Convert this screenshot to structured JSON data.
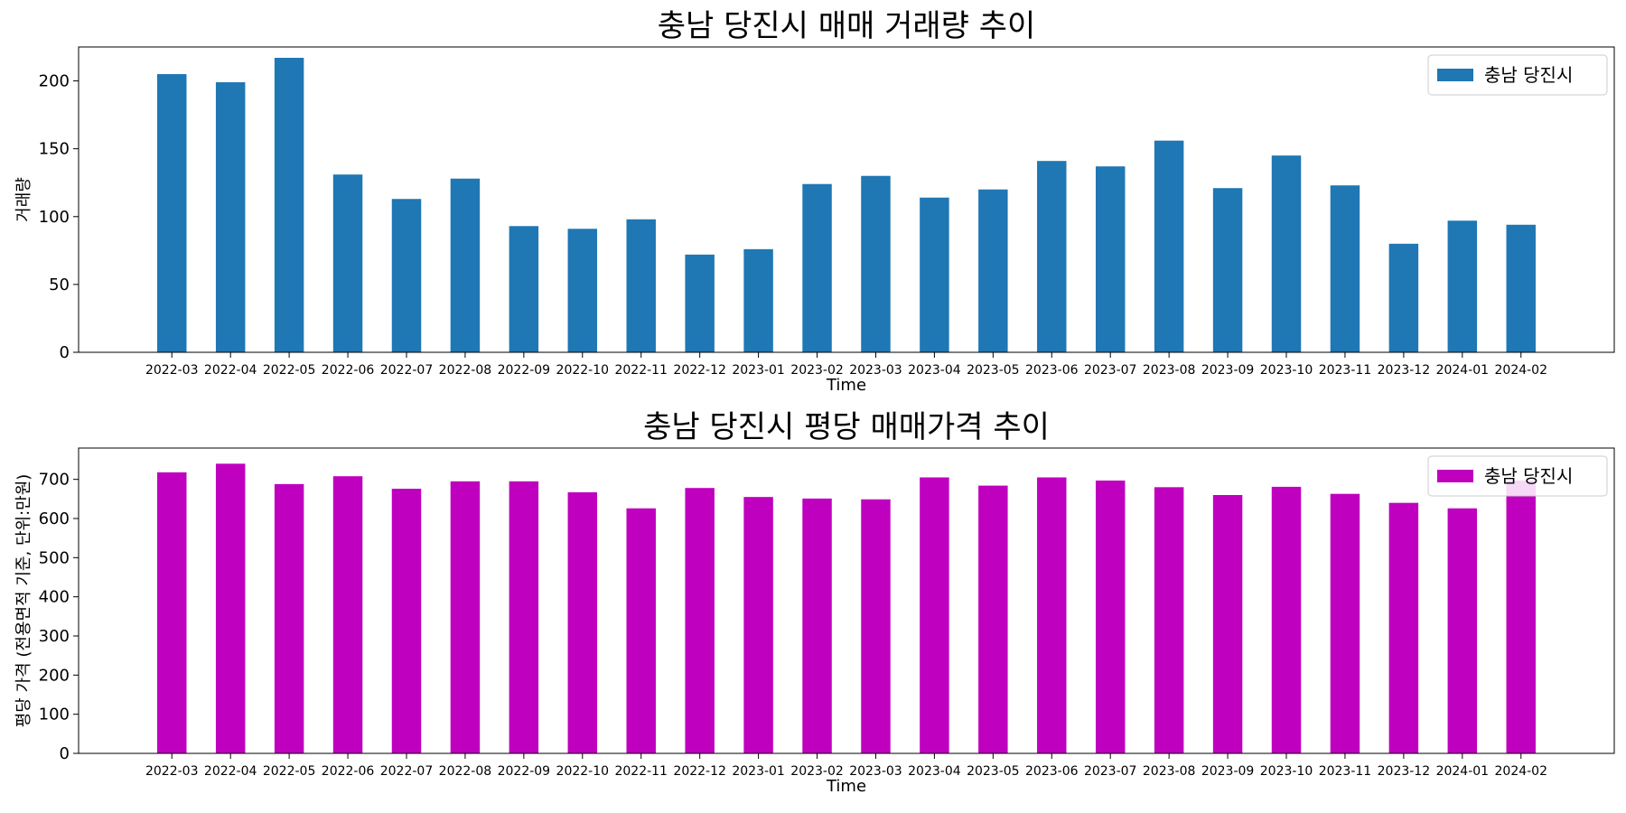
{
  "chart_data": [
    {
      "type": "bar",
      "title": "충남 당진시 매매 거래량 추이",
      "xlabel": "Time",
      "ylabel": "거래량",
      "ylim": [
        0,
        225
      ],
      "yticks": [
        0,
        50,
        100,
        150,
        200
      ],
      "grid": false,
      "legend_placement": "top-right",
      "categories": [
        "2022-03",
        "2022-04",
        "2022-05",
        "2022-06",
        "2022-07",
        "2022-08",
        "2022-09",
        "2022-10",
        "2022-11",
        "2022-12",
        "2023-01",
        "2023-02",
        "2023-03",
        "2023-04",
        "2023-05",
        "2023-06",
        "2023-07",
        "2023-08",
        "2023-09",
        "2023-10",
        "2023-11",
        "2023-12",
        "2024-01",
        "2024-02"
      ],
      "series": [
        {
          "name": "충남 당진시",
          "color": "#1f77b4",
          "values": [
            205,
            199,
            217,
            131,
            113,
            128,
            93,
            91,
            98,
            72,
            76,
            124,
            130,
            114,
            120,
            141,
            137,
            156,
            121,
            145,
            123,
            80,
            97,
            94
          ]
        }
      ]
    },
    {
      "type": "bar",
      "title": "충남 당진시 평당 매매가격 추이",
      "xlabel": "Time",
      "ylabel": "평당 가격 (전용면적 기준, 단위:만원)",
      "ylim": [
        0,
        780
      ],
      "yticks": [
        0,
        100,
        200,
        300,
        400,
        500,
        600,
        700
      ],
      "grid": false,
      "legend_placement": "top-right",
      "categories": [
        "2022-03",
        "2022-04",
        "2022-05",
        "2022-06",
        "2022-07",
        "2022-08",
        "2022-09",
        "2022-10",
        "2022-11",
        "2022-12",
        "2023-01",
        "2023-02",
        "2023-03",
        "2023-04",
        "2023-05",
        "2023-06",
        "2023-07",
        "2023-08",
        "2023-09",
        "2023-10",
        "2023-11",
        "2023-12",
        "2024-01",
        "2024-02"
      ],
      "series": [
        {
          "name": "충남 당진시",
          "color": "#bf00bf",
          "values": [
            718,
            740,
            688,
            708,
            676,
            695,
            695,
            667,
            626,
            678,
            655,
            651,
            649,
            705,
            684,
            705,
            697,
            680,
            660,
            681,
            663,
            640,
            626,
            697
          ]
        }
      ]
    }
  ]
}
